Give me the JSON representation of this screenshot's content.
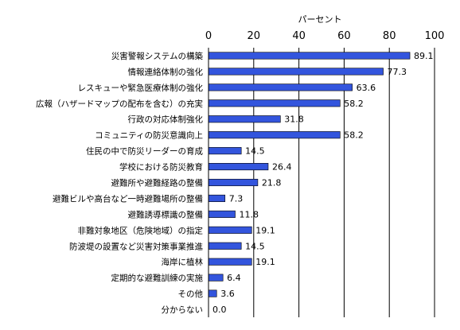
{
  "chart_data": {
    "type": "bar",
    "orientation": "horizontal",
    "unit_label": "パーセント",
    "xlim": [
      0,
      100
    ],
    "xticks": [
      0,
      20,
      40,
      60,
      80,
      100
    ],
    "grid": true,
    "bar_color": "#3355dd",
    "categories": [
      "災害警報システムの構築",
      "情報連絡体制の強化",
      "レスキューや緊急医療体制の強化",
      "広報（ハザードマップの配布を含む）の充実",
      "行政の対応体制強化",
      "コミュニティの防災意識向上",
      "住民の中で防災リーダーの育成",
      "学校における防災教育",
      "避難所や避難経路の整備",
      "避難ビルや高台など一時避難場所の整備",
      "避難誘導標識の整備",
      "非難対象地区（危険地域）の指定",
      "防波堤の設置など災害対策事業推進",
      "海岸に植林",
      "定期的な避難訓練の実施",
      "その他",
      "分からない"
    ],
    "values": [
      89.1,
      77.3,
      63.6,
      58.2,
      31.8,
      58.2,
      14.5,
      26.4,
      21.8,
      7.3,
      11.8,
      19.1,
      14.5,
      19.1,
      6.4,
      3.6,
      0.0
    ],
    "value_labels": [
      "89.1",
      "77.3",
      "63.6",
      "58.2",
      "31.8",
      "58.2",
      "14.5",
      "26.4",
      "21.8",
      "7.3",
      "11.8",
      "19.1",
      "14.5",
      "19.1",
      "6.4",
      "3.6",
      "0.0"
    ]
  }
}
